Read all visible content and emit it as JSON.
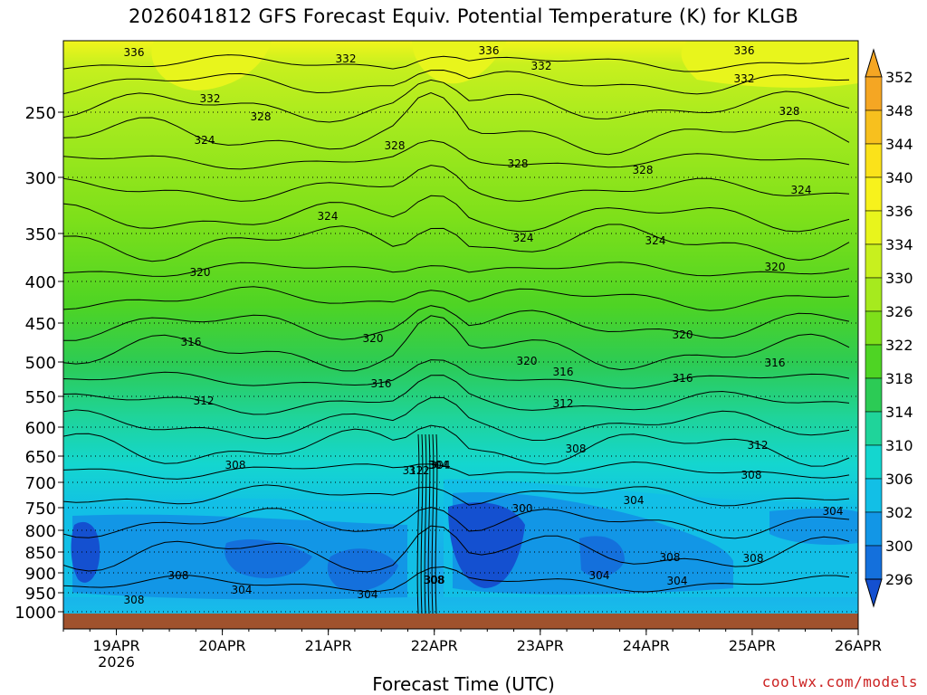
{
  "chart_data": {
    "type": "heatmap",
    "title": "2026041812 GFS Forecast Equiv. Potential Temperature (K) for KLGB",
    "xlabel": "Forecast Time (UTC)",
    "ylabel": "",
    "x_ticks": [
      "19APR",
      "20APR",
      "21APR",
      "22APR",
      "23APR",
      "24APR",
      "25APR",
      "26APR"
    ],
    "x_sublabel": "2026",
    "y_ticks": [
      "250",
      "300",
      "350",
      "400",
      "450",
      "500",
      "550",
      "600",
      "650",
      "700",
      "750",
      "800",
      "850",
      "900",
      "950",
      "1000"
    ],
    "y_range_hpa": [
      200,
      1000
    ],
    "x_range_days": [
      18.5,
      26.0
    ],
    "colorbar": {
      "labels": [
        "352",
        "348",
        "344",
        "340",
        "336",
        "334",
        "330",
        "326",
        "322",
        "318",
        "314",
        "310",
        "306",
        "302",
        "300",
        "296"
      ],
      "levels": [
        352,
        348,
        344,
        340,
        336,
        334,
        330,
        326,
        322,
        318,
        314,
        310,
        306,
        302,
        300,
        296
      ],
      "colors": [
        "#f5a623",
        "#f7c01e",
        "#fbe21a",
        "#f7f21c",
        "#e8f51c",
        "#c8f01e",
        "#a6ea1e",
        "#7ee01a",
        "#4ed424",
        "#2ccb55",
        "#1fd49a",
        "#14d6cf",
        "#12bfe6",
        "#1296e6",
        "#1470dc",
        "#1450d0"
      ]
    },
    "contour_labels": [
      "336",
      "332",
      "336",
      "332",
      "336",
      "332",
      "332",
      "328",
      "328",
      "328",
      "328",
      "328",
      "324",
      "324",
      "324",
      "324",
      "324",
      "320",
      "320",
      "320",
      "320",
      "320",
      "316",
      "316",
      "316",
      "316",
      "316",
      "312",
      "312",
      "312",
      "312",
      "308",
      "308",
      "308",
      "308",
      "308",
      "304",
      "304",
      "304",
      "304",
      "304",
      "300",
      "308",
      "304",
      "308",
      "308",
      "304",
      "312",
      "304",
      "308"
    ],
    "ground_color": "#a0522d"
  },
  "credit": "coolwx.com/models"
}
